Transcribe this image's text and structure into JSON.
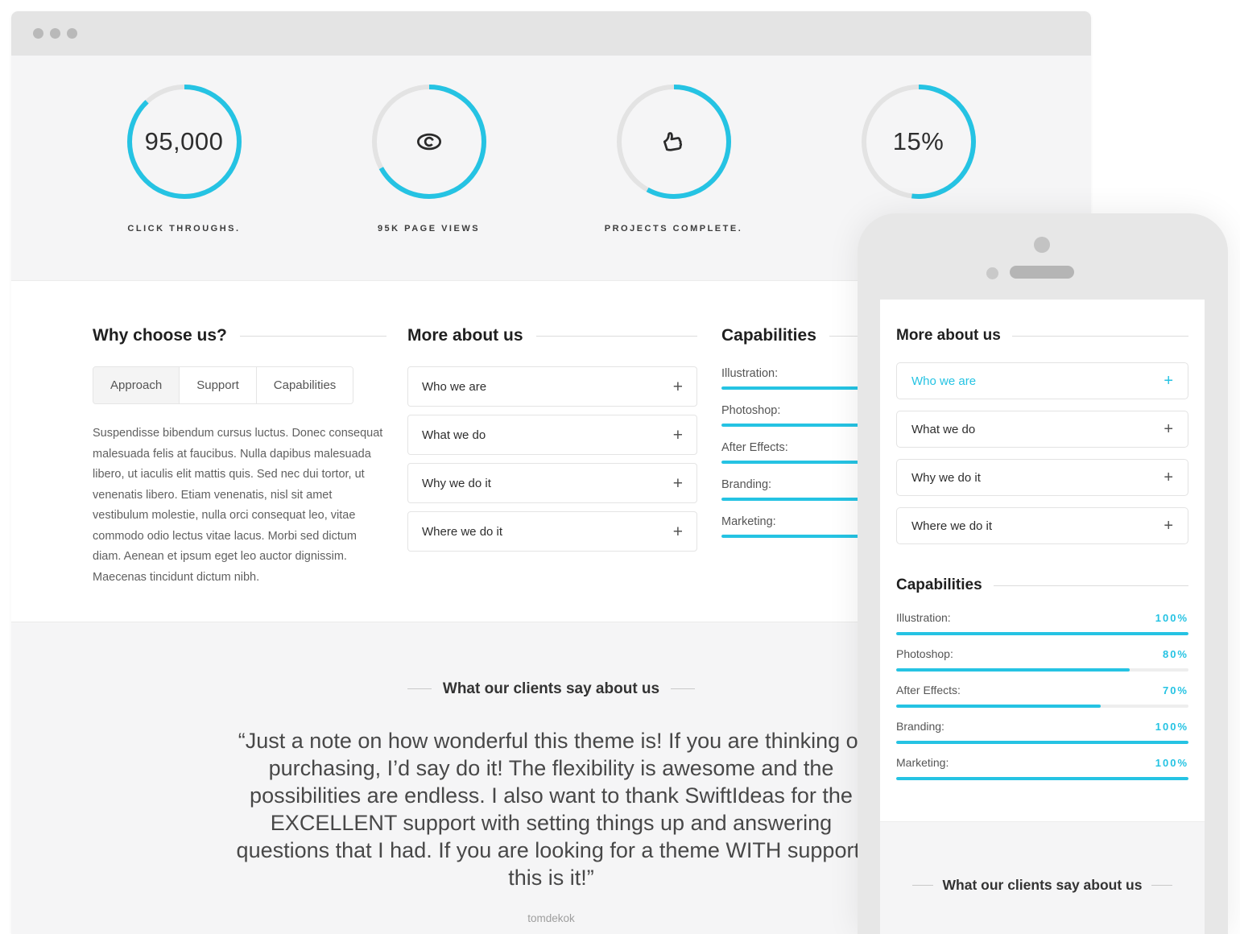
{
  "theme": {
    "accent": "#25c3e3",
    "ring_track": "#e3e3e3"
  },
  "browser": {
    "stats": [
      {
        "value": "95,000",
        "label": "CLICK THROUGHS.",
        "progress": 0.88
      },
      {
        "icon": "eye-icon",
        "label": "95K PAGE VIEWS",
        "progress": 0.67
      },
      {
        "icon": "thumbs-up-icon",
        "label": "PROJECTS COMPLETE.",
        "progress": 0.58
      },
      {
        "value": "15%",
        "label": "",
        "progress": 0.52
      }
    ]
  },
  "why": {
    "title": "Why choose us?",
    "tabs": [
      {
        "label": "Approach",
        "active": true
      },
      {
        "label": "Support",
        "active": false
      },
      {
        "label": "Capabilities",
        "active": false
      }
    ],
    "body": "Suspendisse bibendum cursus luctus. Donec consequat malesuada felis at faucibus. Nulla dapibus malesuada libero, ut iaculis elit mattis quis. Sed nec dui tortor, ut venenatis libero. Etiam venenatis, nisl sit amet vestibulum molestie, nulla orci consequat leo, vitae commodo odio lectus vitae lacus. Morbi sed dictum diam. Aenean et ipsum eget leo auctor dignissim. Maecenas tincidunt dictum nibh."
  },
  "about": {
    "title": "More about us",
    "expand_symbol": "+",
    "items": [
      {
        "label": "Who we are"
      },
      {
        "label": "What we do"
      },
      {
        "label": "Why we do it"
      },
      {
        "label": "Where we do it"
      }
    ]
  },
  "capabilities": {
    "title": "Capabilities",
    "skills": [
      {
        "label": "Illustration:",
        "pct": 100,
        "pct_label": "100%"
      },
      {
        "label": "Photoshop:",
        "pct": 80,
        "pct_label": "80%"
      },
      {
        "label": "After Effects:",
        "pct": 70,
        "pct_label": "70%"
      },
      {
        "label": "Branding:",
        "pct": 100,
        "pct_label": "100%"
      },
      {
        "label": "Marketing:",
        "pct": 100,
        "pct_label": "100%"
      }
    ]
  },
  "testimonial": {
    "heading": "What our clients say about us",
    "quote": "“Just a note on how wonderful this theme is! If you are thinking of purchasing, I’d say do it! The flexibility is awesome and the possibilities are endless. I also want to thank SwiftIdeas for the EXCELLENT support with setting things up and answering questions that I had. If you are looking for a theme WITH support, this is it!”",
    "author": "tomdekok"
  },
  "mobile": {
    "active_item": "Who we are"
  }
}
